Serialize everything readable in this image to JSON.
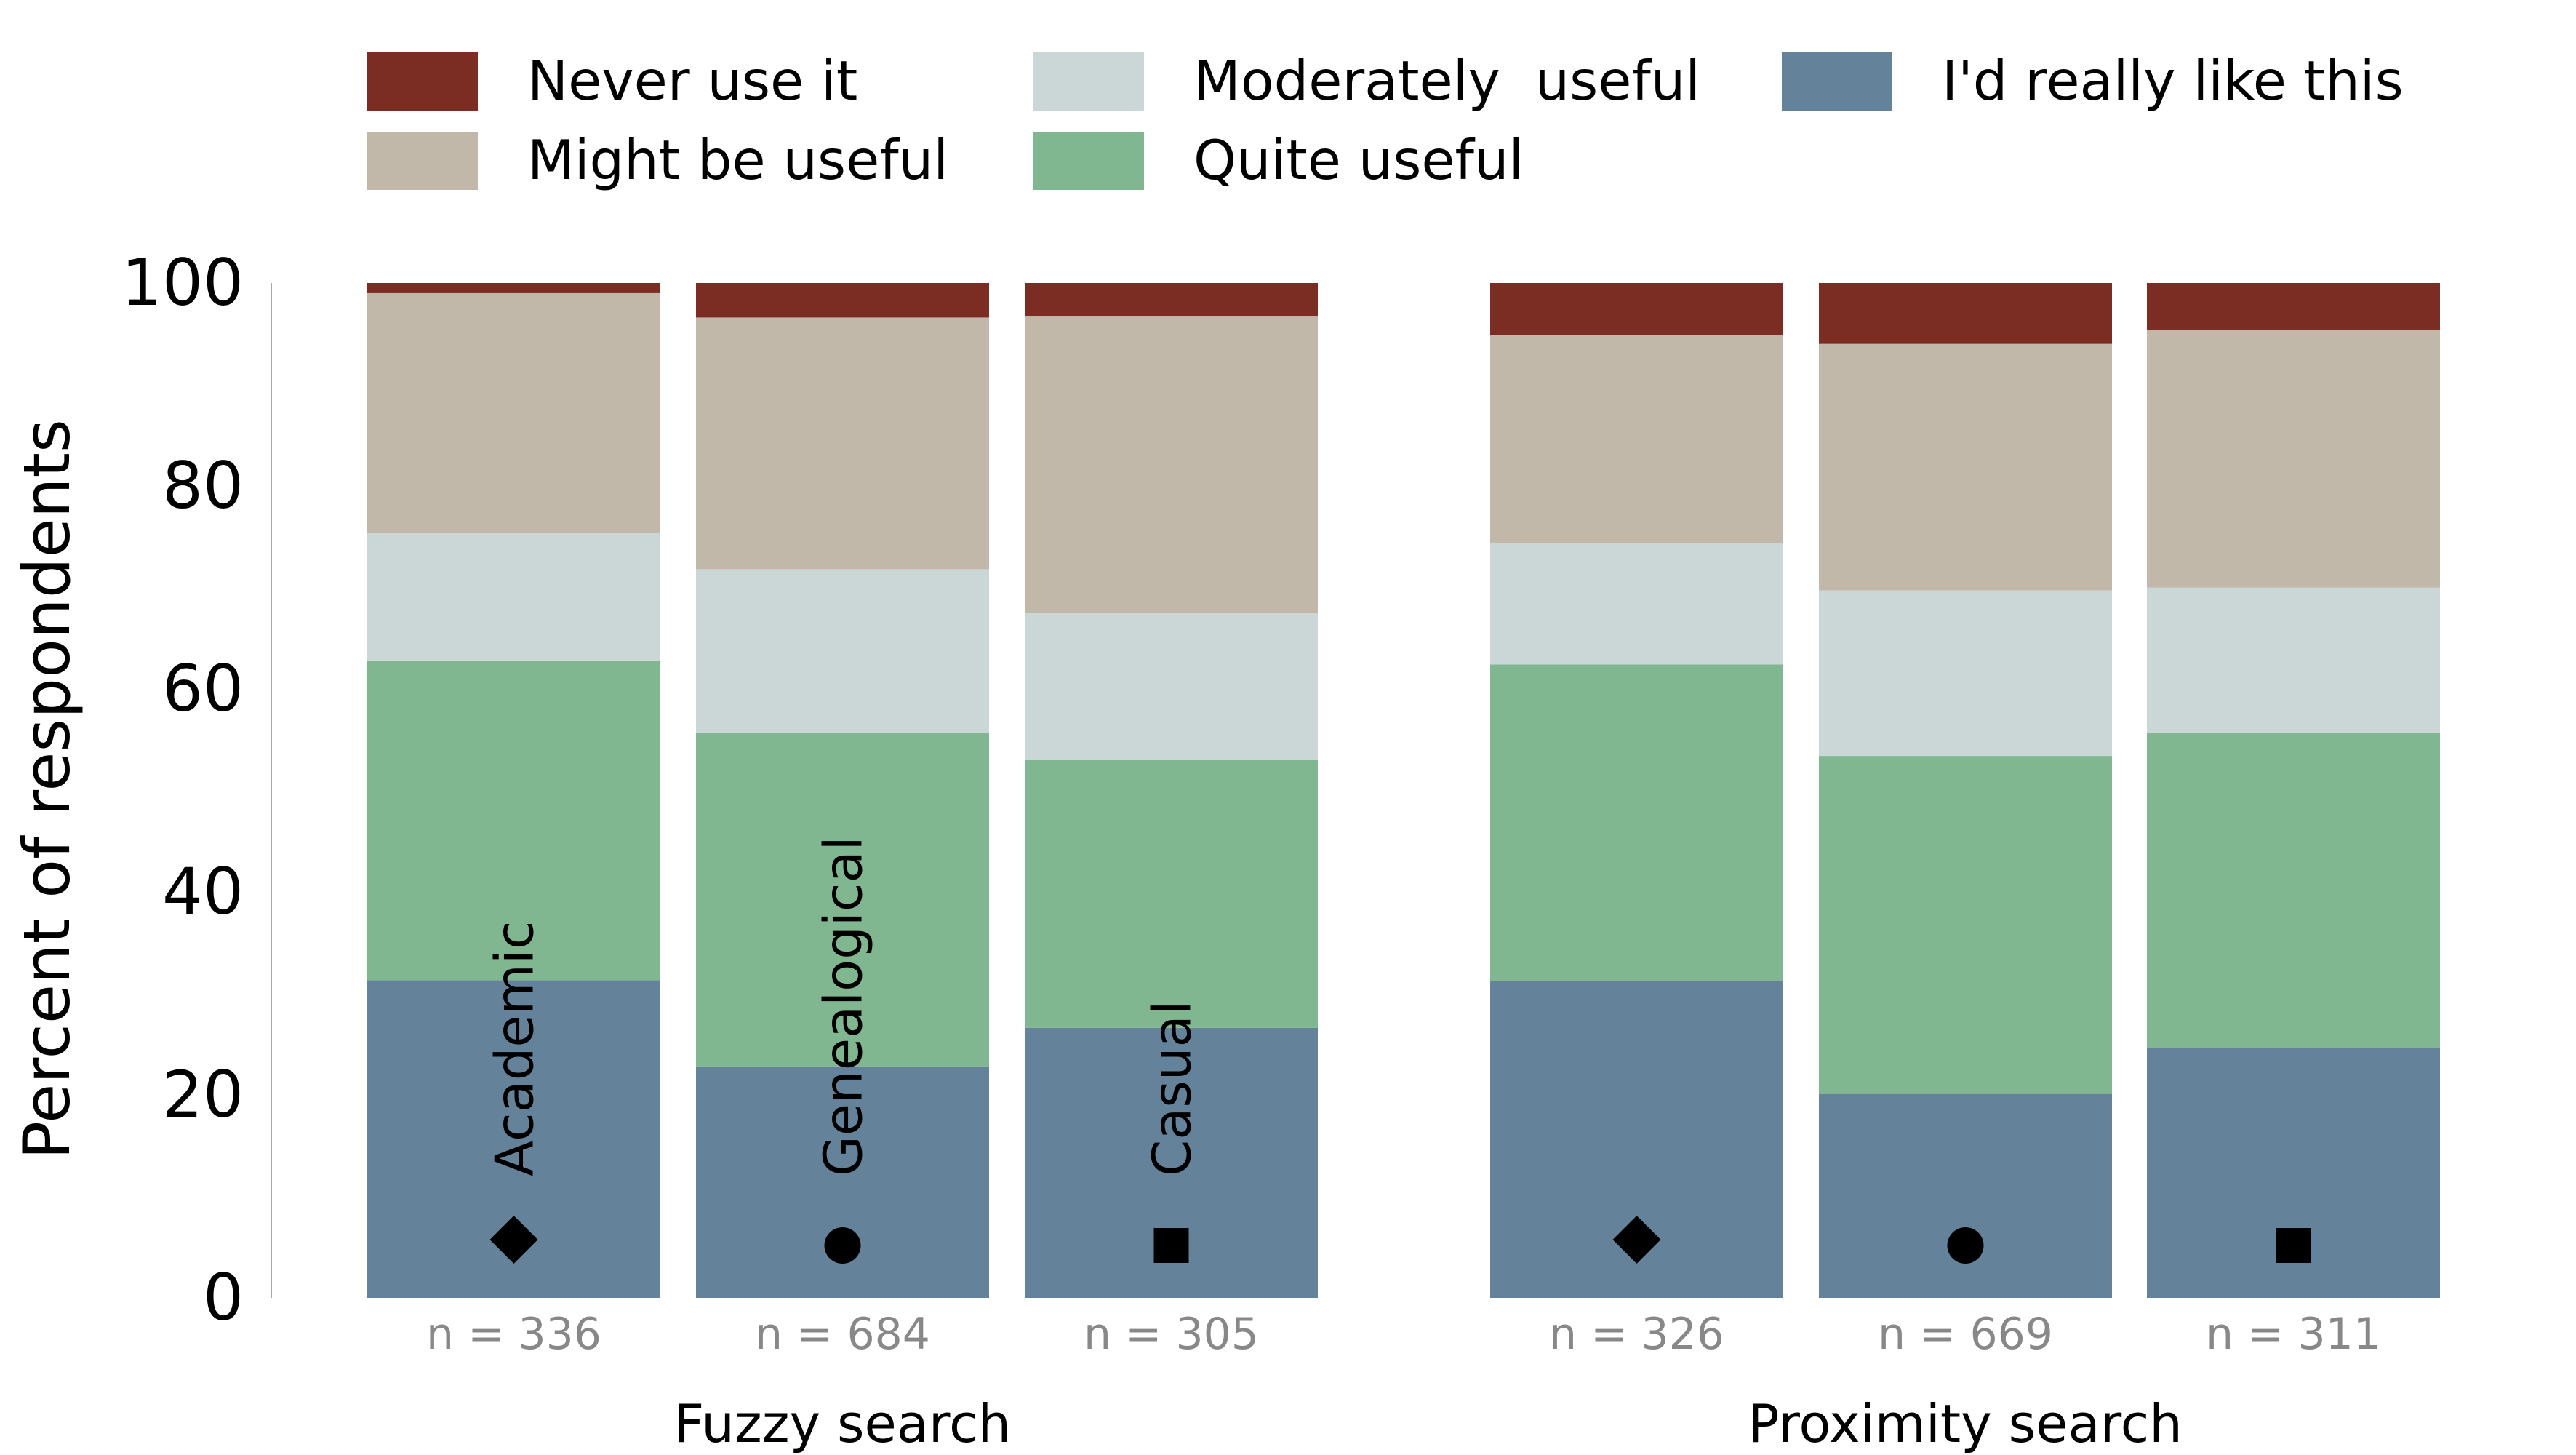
{
  "chart_data": {
    "type": "bar",
    "stacked": true,
    "ylabel": "Percent of respondents",
    "ylim": [
      0,
      100
    ],
    "yticks": [
      "0",
      "20",
      "40",
      "60",
      "80",
      "100"
    ],
    "grid": false,
    "legend_position": "top",
    "series": [
      {
        "name": "I'd really like this",
        "color": "#65829b"
      },
      {
        "name": "Quite useful",
        "color": "#80b690"
      },
      {
        "name": "Moderately  useful",
        "color": "#cbd7d7"
      },
      {
        "name": "Might be useful",
        "color": "#c1b8aa"
      },
      {
        "name": "Never use it",
        "color": "#7b2d24"
      }
    ],
    "legend_order": [
      "Never use it",
      "Might be useful",
      "Moderately  useful",
      "Quite useful",
      "I'd really like this"
    ],
    "groups": [
      {
        "label": "Fuzzy search",
        "bars": [
          {
            "category": "Academic",
            "marker": "diamond",
            "n_label": "n = 336",
            "values": [
              31.3,
              31.5,
              12.6,
              23.6,
              1.0
            ]
          },
          {
            "category": "Genealogical",
            "marker": "circle",
            "n_label": "n = 684",
            "values": [
              22.8,
              32.9,
              16.1,
              24.8,
              3.4
            ]
          },
          {
            "category": "Casual",
            "marker": "square",
            "n_label": "n = 305",
            "values": [
              26.6,
              26.4,
              14.5,
              29.2,
              3.3
            ]
          }
        ]
      },
      {
        "label": "Proximity search",
        "bars": [
          {
            "category": "Academic",
            "marker": "diamond",
            "n_label": "n = 326",
            "values": [
              31.2,
              31.2,
              12.0,
              20.5,
              5.1
            ]
          },
          {
            "category": "Genealogical",
            "marker": "circle",
            "n_label": "n = 669",
            "values": [
              20.1,
              33.3,
              16.3,
              24.3,
              6.0
            ]
          },
          {
            "category": "Casual",
            "marker": "square",
            "n_label": "n = 311",
            "values": [
              24.6,
              31.1,
              14.3,
              25.4,
              4.6
            ]
          }
        ]
      }
    ],
    "show_category_labels_in_group": 0
  }
}
